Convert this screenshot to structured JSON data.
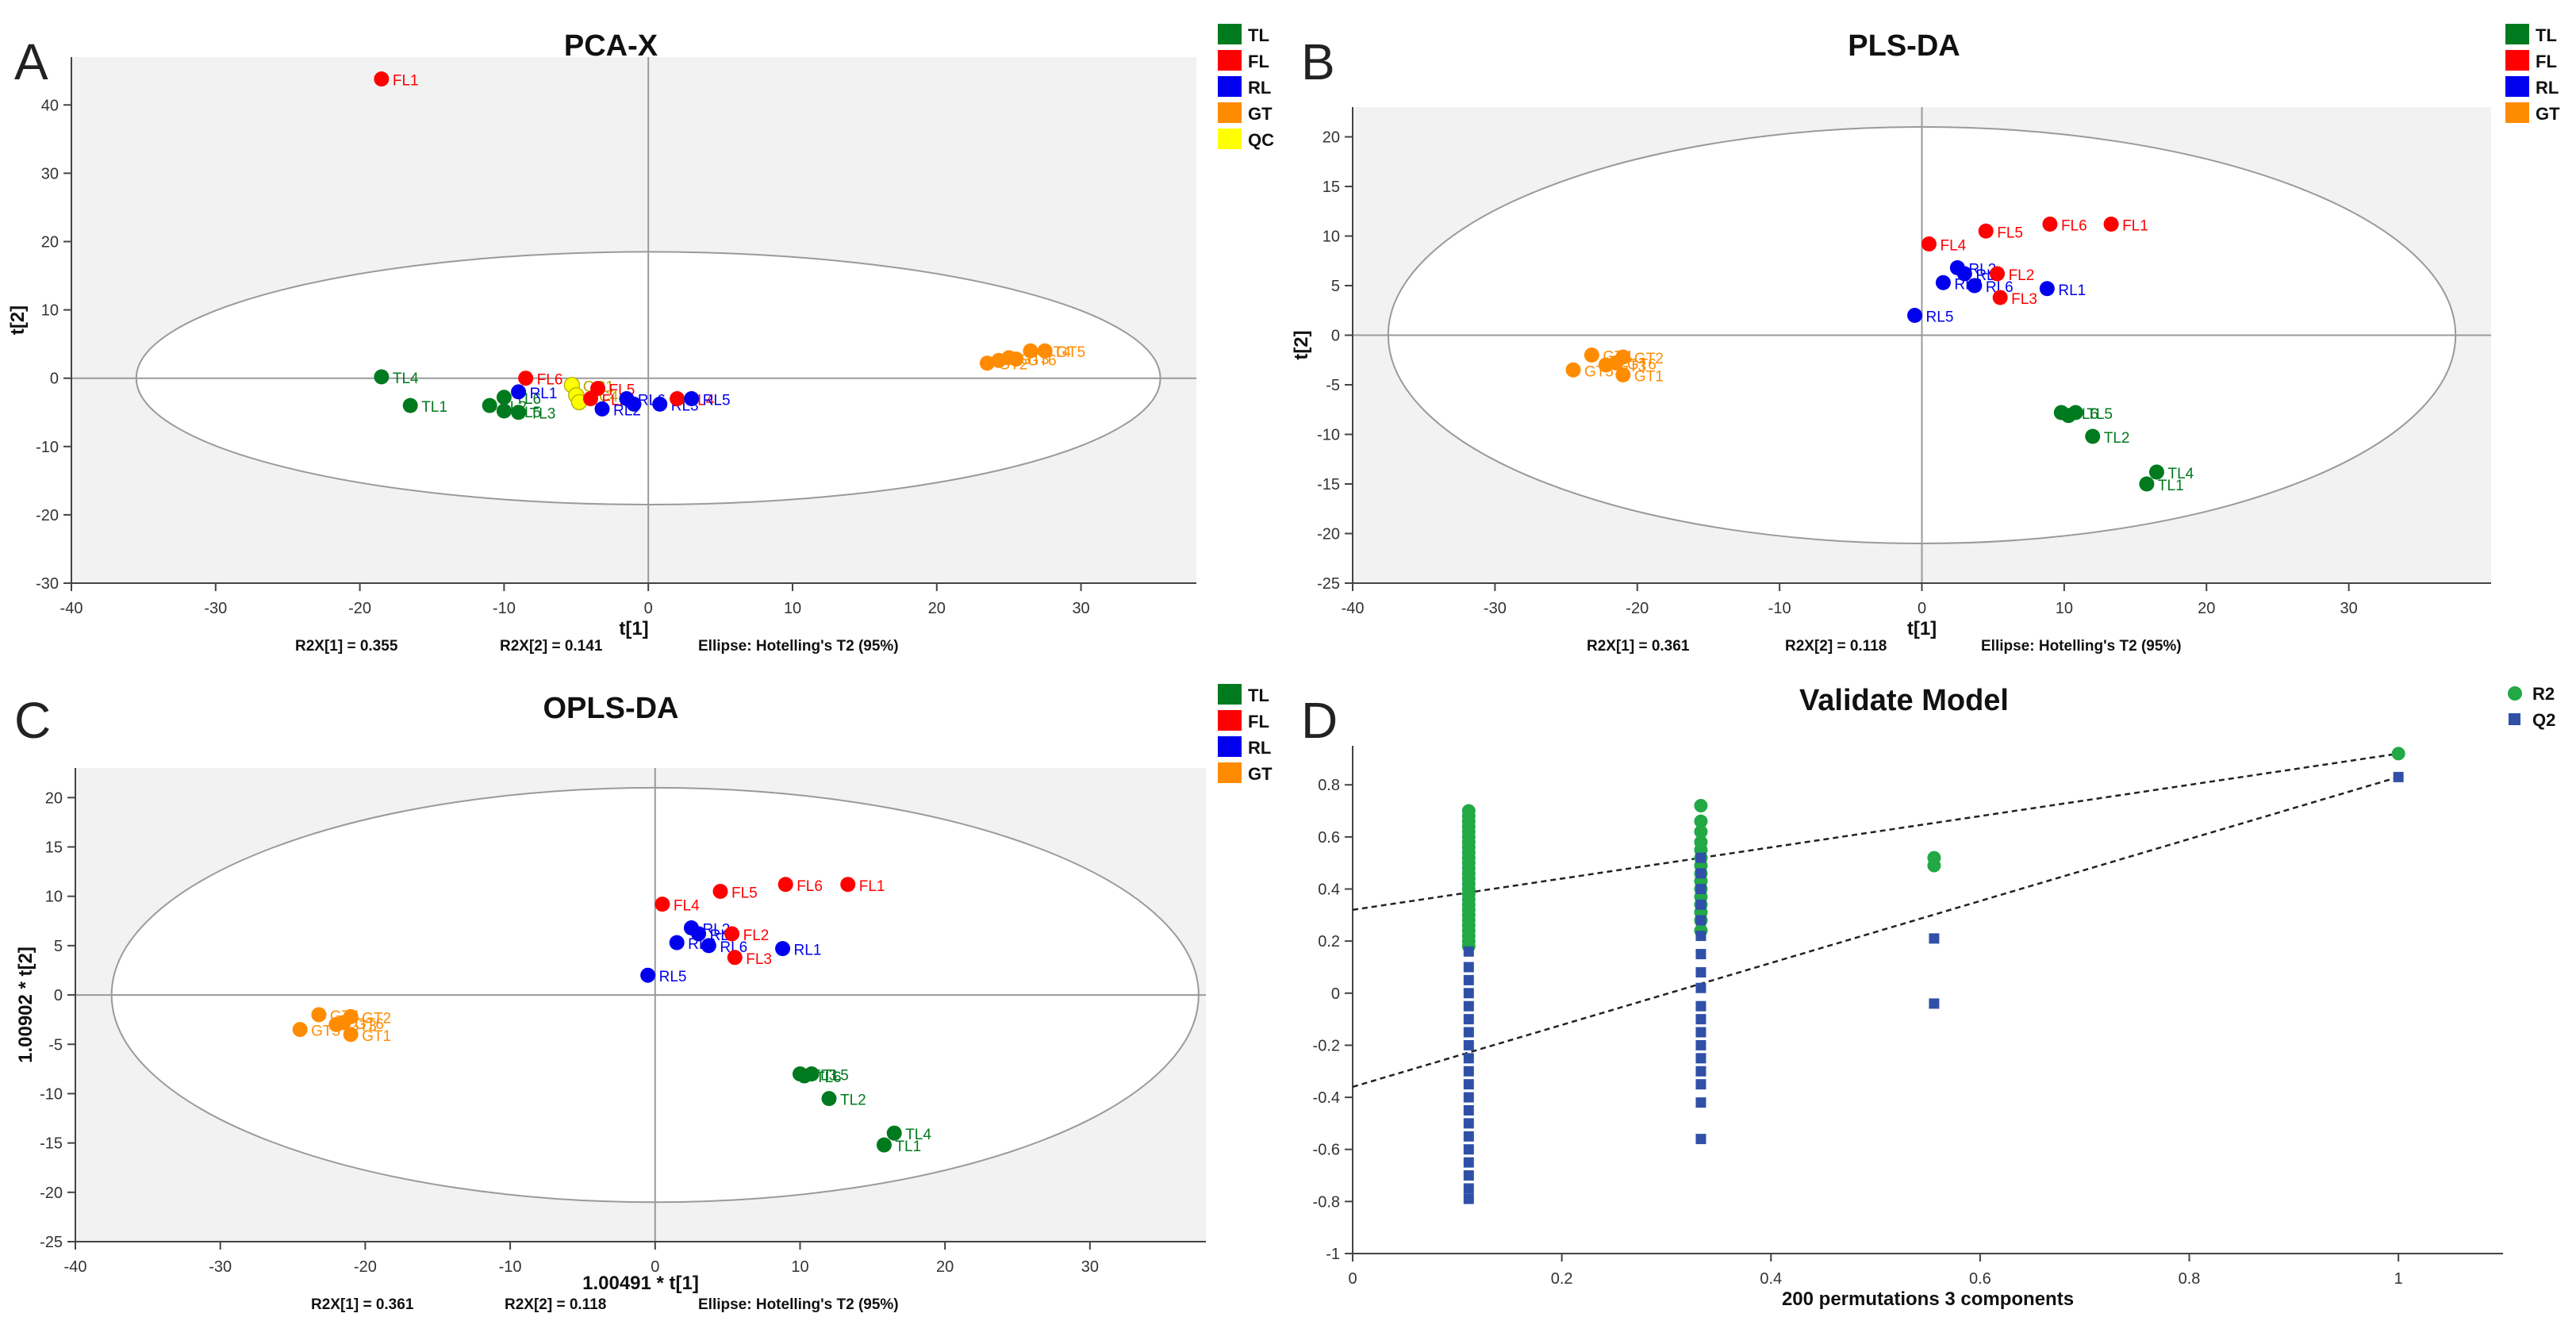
{
  "chart_data": [
    {
      "panel": "A",
      "type": "scatter",
      "title": "PCA-X",
      "xlabel": "t[1]",
      "ylabel": "t[2]",
      "xlim": [
        -40,
        38
      ],
      "ylim": [
        -30,
        47
      ],
      "xticks": [
        -40,
        -30,
        -20,
        -10,
        0,
        10,
        20,
        30
      ],
      "yticks": [
        -30,
        -20,
        -10,
        0,
        10,
        20,
        30,
        40
      ],
      "ellipse": {
        "a": 35.5,
        "b": 18.5
      },
      "legend": [
        {
          "label": "TL",
          "color": "#007a1e"
        },
        {
          "label": "FL",
          "color": "#ff0000"
        },
        {
          "label": "RL",
          "color": "#0000ee"
        },
        {
          "label": "GT",
          "color": "#ff8c00"
        },
        {
          "label": "QC",
          "color": "#ffff00"
        }
      ],
      "footer": [
        "R2X[1] = 0.355",
        "R2X[2] = 0.141",
        "Ellipse: Hotelling's T2 (95%)"
      ],
      "points": [
        {
          "g": "FL",
          "label": "FL1",
          "x": -18.5,
          "y": 43.8
        },
        {
          "g": "TL",
          "label": "TL4",
          "x": -18.5,
          "y": 0.2
        },
        {
          "g": "TL",
          "label": "TL1",
          "x": -16.5,
          "y": -4
        },
        {
          "g": "TL",
          "label": "TL6",
          "x": -10,
          "y": -2.8
        },
        {
          "g": "TL",
          "label": "TL2",
          "x": -11,
          "y": -4
        },
        {
          "g": "TL",
          "label": "TL5",
          "x": -10,
          "y": -4.8
        },
        {
          "g": "TL",
          "label": "TL3",
          "x": -9,
          "y": -5
        },
        {
          "g": "FL",
          "label": "FL6",
          "x": -8.5,
          "y": 0
        },
        {
          "g": "RL",
          "label": "RL1",
          "x": -9,
          "y": -2
        },
        {
          "g": "QC",
          "label": "QC1",
          "x": -5.3,
          "y": -1
        },
        {
          "g": "QC",
          "label": "QC4",
          "x": -5,
          "y": -2.5
        },
        {
          "g": "QC",
          "label": "",
          "x": -4.8,
          "y": -3.5
        },
        {
          "g": "FL",
          "label": "FL5",
          "x": -3.5,
          "y": -1.5
        },
        {
          "g": "FL",
          "label": "FL2",
          "x": -4,
          "y": -3
        },
        {
          "g": "RL",
          "label": "RL2",
          "x": -3.2,
          "y": -4.5
        },
        {
          "g": "RL",
          "label": "RL6",
          "x": -1.5,
          "y": -3
        },
        {
          "g": "RL",
          "label": "",
          "x": -1,
          "y": -3.8
        },
        {
          "g": "RL",
          "label": "RL3",
          "x": 0.8,
          "y": -3.8
        },
        {
          "g": "FL",
          "label": "FL4",
          "x": 2,
          "y": -3
        },
        {
          "g": "RL",
          "label": "RL5",
          "x": 3,
          "y": -3
        },
        {
          "g": "GT",
          "label": "GT2",
          "x": 23.5,
          "y": 2.2
        },
        {
          "g": "GT",
          "label": "",
          "x": 24.3,
          "y": 2.6
        },
        {
          "g": "GT",
          "label": "GT3",
          "x": 25,
          "y": 3
        },
        {
          "g": "GT",
          "label": "GT4",
          "x": 26.5,
          "y": 4
        },
        {
          "g": "GT",
          "label": "GT5",
          "x": 27.5,
          "y": 4
        },
        {
          "g": "GT",
          "label": "GT6",
          "x": 25.5,
          "y": 2.8
        }
      ]
    },
    {
      "panel": "B",
      "type": "scatter",
      "title": "PLS-DA",
      "xlabel": "t[1]",
      "ylabel": "t[2]",
      "xlim": [
        -40,
        40
      ],
      "ylim": [
        -25,
        23
      ],
      "xticks": [
        -40,
        -30,
        -20,
        -10,
        0,
        10,
        20,
        30
      ],
      "yticks": [
        -25,
        -20,
        -15,
        -10,
        -5,
        0,
        5,
        10,
        15,
        20
      ],
      "ellipse": {
        "a": 37.5,
        "b": 21
      },
      "legend": [
        {
          "label": "TL",
          "color": "#007a1e"
        },
        {
          "label": "FL",
          "color": "#ff0000"
        },
        {
          "label": "RL",
          "color": "#0000ee"
        },
        {
          "label": "GT",
          "color": "#ff8c00"
        }
      ],
      "footer": [
        "R2X[1] = 0.361",
        "R2X[2] = 0.118",
        "Ellipse: Hotelling's T2 (95%)"
      ],
      "points": [
        {
          "g": "FL",
          "label": "FL6",
          "x": 9,
          "y": 11.2
        },
        {
          "g": "FL",
          "label": "FL1",
          "x": 13.3,
          "y": 11.2
        },
        {
          "g": "FL",
          "label": "FL5",
          "x": 4.5,
          "y": 10.5
        },
        {
          "g": "FL",
          "label": "FL4",
          "x": 0.5,
          "y": 9.2
        },
        {
          "g": "RL",
          "label": "RL2",
          "x": 2.5,
          "y": 6.8
        },
        {
          "g": "RL",
          "label": "RL",
          "x": 3,
          "y": 6.2
        },
        {
          "g": "FL",
          "label": "FL2",
          "x": 5.3,
          "y": 6.2
        },
        {
          "g": "RL",
          "label": "RL3",
          "x": 1.5,
          "y": 5.3
        },
        {
          "g": "RL",
          "label": "RL6",
          "x": 3.7,
          "y": 5
        },
        {
          "g": "FL",
          "label": "FL3",
          "x": 5.5,
          "y": 3.8
        },
        {
          "g": "RL",
          "label": "RL1",
          "x": 8.8,
          "y": 4.7
        },
        {
          "g": "RL",
          "label": "RL5",
          "x": -0.5,
          "y": 2
        },
        {
          "g": "GT",
          "label": "GT4",
          "x": -23.2,
          "y": -2
        },
        {
          "g": "GT",
          "label": "GT3",
          "x": -22.2,
          "y": -3
        },
        {
          "g": "GT",
          "label": "GT2",
          "x": -21,
          "y": -2.2
        },
        {
          "g": "GT",
          "label": "GT5",
          "x": -24.5,
          "y": -3.5
        },
        {
          "g": "GT",
          "label": "GT6",
          "x": -21.5,
          "y": -2.8
        },
        {
          "g": "GT",
          "label": "GT1",
          "x": -21,
          "y": -4
        },
        {
          "g": "TL",
          "label": "TL6",
          "x": 9.8,
          "y": -7.8
        },
        {
          "g": "TL",
          "label": "",
          "x": 10.3,
          "y": -8.1
        },
        {
          "g": "TL",
          "label": "TL5",
          "x": 10.8,
          "y": -7.8
        },
        {
          "g": "TL",
          "label": "TL2",
          "x": 12,
          "y": -10.2
        },
        {
          "g": "TL",
          "label": "TL4",
          "x": 16.5,
          "y": -13.8
        },
        {
          "g": "TL",
          "label": "TL1",
          "x": 15.8,
          "y": -15
        }
      ]
    },
    {
      "panel": "C",
      "type": "scatter",
      "title": "OPLS-DA",
      "xlabel": "1.00491 * t[1]",
      "ylabel": "1.00902 * t[2]",
      "xlim": [
        -40,
        38
      ],
      "ylim": [
        -25,
        23
      ],
      "xticks": [
        -40,
        -30,
        -20,
        -10,
        0,
        10,
        20,
        30
      ],
      "yticks": [
        -25,
        -20,
        -15,
        -10,
        -5,
        0,
        5,
        10,
        15,
        20
      ],
      "ellipse": {
        "a": 37.5,
        "b": 21
      },
      "legend": [
        {
          "label": "TL",
          "color": "#007a1e"
        },
        {
          "label": "FL",
          "color": "#ff0000"
        },
        {
          "label": "RL",
          "color": "#0000ee"
        },
        {
          "label": "GT",
          "color": "#ff8c00"
        }
      ],
      "footer": [
        "R2X[1] = 0.361",
        "R2X[2] = 0.118",
        "Ellipse: Hotelling's T2 (95%)"
      ],
      "points": [
        {
          "g": "FL",
          "label": "FL5",
          "x": 4.5,
          "y": 10.5
        },
        {
          "g": "FL",
          "label": "FL6",
          "x": 9,
          "y": 11.2
        },
        {
          "g": "FL",
          "label": "FL1",
          "x": 13.3,
          "y": 11.2
        },
        {
          "g": "FL",
          "label": "FL4",
          "x": 0.5,
          "y": 9.2
        },
        {
          "g": "RL",
          "label": "RL2",
          "x": 2.5,
          "y": 6.8
        },
        {
          "g": "RL",
          "label": "RL",
          "x": 3,
          "y": 6.2
        },
        {
          "g": "FL",
          "label": "FL2",
          "x": 5.3,
          "y": 6.2
        },
        {
          "g": "RL",
          "label": "RL3",
          "x": 1.5,
          "y": 5.3
        },
        {
          "g": "RL",
          "label": "RL6",
          "x": 3.7,
          "y": 5
        },
        {
          "g": "FL",
          "label": "FL3",
          "x": 5.5,
          "y": 3.8
        },
        {
          "g": "RL",
          "label": "RL1",
          "x": 8.8,
          "y": 4.7
        },
        {
          "g": "RL",
          "label": "RL5",
          "x": -0.5,
          "y": 2
        },
        {
          "g": "GT",
          "label": "GT4",
          "x": -23.2,
          "y": -2
        },
        {
          "g": "GT",
          "label": "GT3",
          "x": -22,
          "y": -3
        },
        {
          "g": "GT",
          "label": "GT2",
          "x": -21,
          "y": -2.2
        },
        {
          "g": "GT",
          "label": "GT5",
          "x": -24.5,
          "y": -3.5
        },
        {
          "g": "GT",
          "label": "GT6",
          "x": -21.5,
          "y": -2.8
        },
        {
          "g": "GT",
          "label": "GT1",
          "x": -21,
          "y": -4
        },
        {
          "g": "TL",
          "label": "TL3",
          "x": 10,
          "y": -8
        },
        {
          "g": "TL",
          "label": "TL6",
          "x": 10.3,
          "y": -8.2
        },
        {
          "g": "TL",
          "label": "TL5",
          "x": 10.8,
          "y": -8
        },
        {
          "g": "TL",
          "label": "TL2",
          "x": 12,
          "y": -10.5
        },
        {
          "g": "TL",
          "label": "TL4",
          "x": 16.5,
          "y": -14
        },
        {
          "g": "TL",
          "label": "TL1",
          "x": 15.8,
          "y": -15.2
        }
      ]
    },
    {
      "panel": "D",
      "type": "scatter",
      "title": "Validate Model",
      "xlabel": "200 permutations 3 components",
      "ylabel": "",
      "xlim": [
        0,
        1.1
      ],
      "ylim": [
        -1,
        0.95
      ],
      "xticks": [
        0,
        0.2,
        0.4,
        0.6,
        0.8,
        1
      ],
      "yticks": [
        -1,
        -0.8,
        -0.6,
        -0.4,
        -0.2,
        0,
        0.2,
        0.4,
        0.6,
        0.8
      ],
      "legend": [
        {
          "label": "R2",
          "color": "#22a845"
        },
        {
          "label": "Q2",
          "color": "#3050a8"
        }
      ],
      "regression": [
        {
          "name": "R2",
          "x": [
            0,
            1
          ],
          "y": [
            0.32,
            0.92
          ]
        },
        {
          "name": "Q2",
          "x": [
            0,
            1
          ],
          "y": [
            -0.36,
            0.83
          ]
        }
      ],
      "series": [
        {
          "name": "R2",
          "points": [
            [
              0.111,
              0.7
            ],
            [
              0.111,
              0.68
            ],
            [
              0.111,
              0.66
            ],
            [
              0.111,
              0.64
            ],
            [
              0.111,
              0.62
            ],
            [
              0.111,
              0.6
            ],
            [
              0.111,
              0.58
            ],
            [
              0.111,
              0.56
            ],
            [
              0.111,
              0.54
            ],
            [
              0.111,
              0.52
            ],
            [
              0.111,
              0.5
            ],
            [
              0.111,
              0.48
            ],
            [
              0.111,
              0.46
            ],
            [
              0.111,
              0.44
            ],
            [
              0.111,
              0.42
            ],
            [
              0.111,
              0.4
            ],
            [
              0.111,
              0.38
            ],
            [
              0.111,
              0.36
            ],
            [
              0.111,
              0.34
            ],
            [
              0.111,
              0.32
            ],
            [
              0.111,
              0.3
            ],
            [
              0.111,
              0.28
            ],
            [
              0.111,
              0.26
            ],
            [
              0.111,
              0.24
            ],
            [
              0.111,
              0.22
            ],
            [
              0.111,
              0.2
            ],
            [
              0.111,
              0.18
            ],
            [
              0.333,
              0.72
            ],
            [
              0.333,
              0.66
            ],
            [
              0.333,
              0.62
            ],
            [
              0.333,
              0.58
            ],
            [
              0.333,
              0.55
            ],
            [
              0.333,
              0.52
            ],
            [
              0.333,
              0.49
            ],
            [
              0.333,
              0.46
            ],
            [
              0.333,
              0.43
            ],
            [
              0.333,
              0.4
            ],
            [
              0.333,
              0.37
            ],
            [
              0.333,
              0.34
            ],
            [
              0.333,
              0.31
            ],
            [
              0.333,
              0.28
            ],
            [
              0.333,
              0.24
            ],
            [
              0.556,
              0.52
            ],
            [
              0.556,
              0.49
            ],
            [
              1.0,
              0.92
            ]
          ]
        },
        {
          "name": "Q2",
          "points": [
            [
              0.111,
              0.16
            ],
            [
              0.111,
              0.1
            ],
            [
              0.111,
              0.05
            ],
            [
              0.111,
              0.0
            ],
            [
              0.111,
              -0.05
            ],
            [
              0.111,
              -0.1
            ],
            [
              0.111,
              -0.15
            ],
            [
              0.111,
              -0.2
            ],
            [
              0.111,
              -0.25
            ],
            [
              0.111,
              -0.3
            ],
            [
              0.111,
              -0.35
            ],
            [
              0.111,
              -0.4
            ],
            [
              0.111,
              -0.45
            ],
            [
              0.111,
              -0.5
            ],
            [
              0.111,
              -0.55
            ],
            [
              0.111,
              -0.6
            ],
            [
              0.111,
              -0.65
            ],
            [
              0.111,
              -0.7
            ],
            [
              0.111,
              -0.75
            ],
            [
              0.111,
              -0.79
            ],
            [
              0.333,
              0.52
            ],
            [
              0.333,
              0.46
            ],
            [
              0.333,
              0.4
            ],
            [
              0.333,
              0.34
            ],
            [
              0.333,
              0.28
            ],
            [
              0.333,
              0.22
            ],
            [
              0.333,
              0.15
            ],
            [
              0.333,
              0.08
            ],
            [
              0.333,
              0.02
            ],
            [
              0.333,
              -0.05
            ],
            [
              0.333,
              -0.1
            ],
            [
              0.333,
              -0.15
            ],
            [
              0.333,
              -0.2
            ],
            [
              0.333,
              -0.25
            ],
            [
              0.333,
              -0.3
            ],
            [
              0.333,
              -0.35
            ],
            [
              0.333,
              -0.42
            ],
            [
              0.333,
              -0.56
            ],
            [
              0.556,
              0.21
            ],
            [
              0.556,
              -0.04
            ],
            [
              1.0,
              0.83
            ]
          ]
        }
      ]
    }
  ],
  "panel_letters": [
    "A",
    "B",
    "C",
    "D"
  ],
  "colors": {
    "TL": "#007a1e",
    "FL": "#ff0000",
    "RL": "#0000ee",
    "GT": "#ff8c00",
    "QC": "#ffff00",
    "R2": "#22a845",
    "Q2": "#3050a8"
  }
}
